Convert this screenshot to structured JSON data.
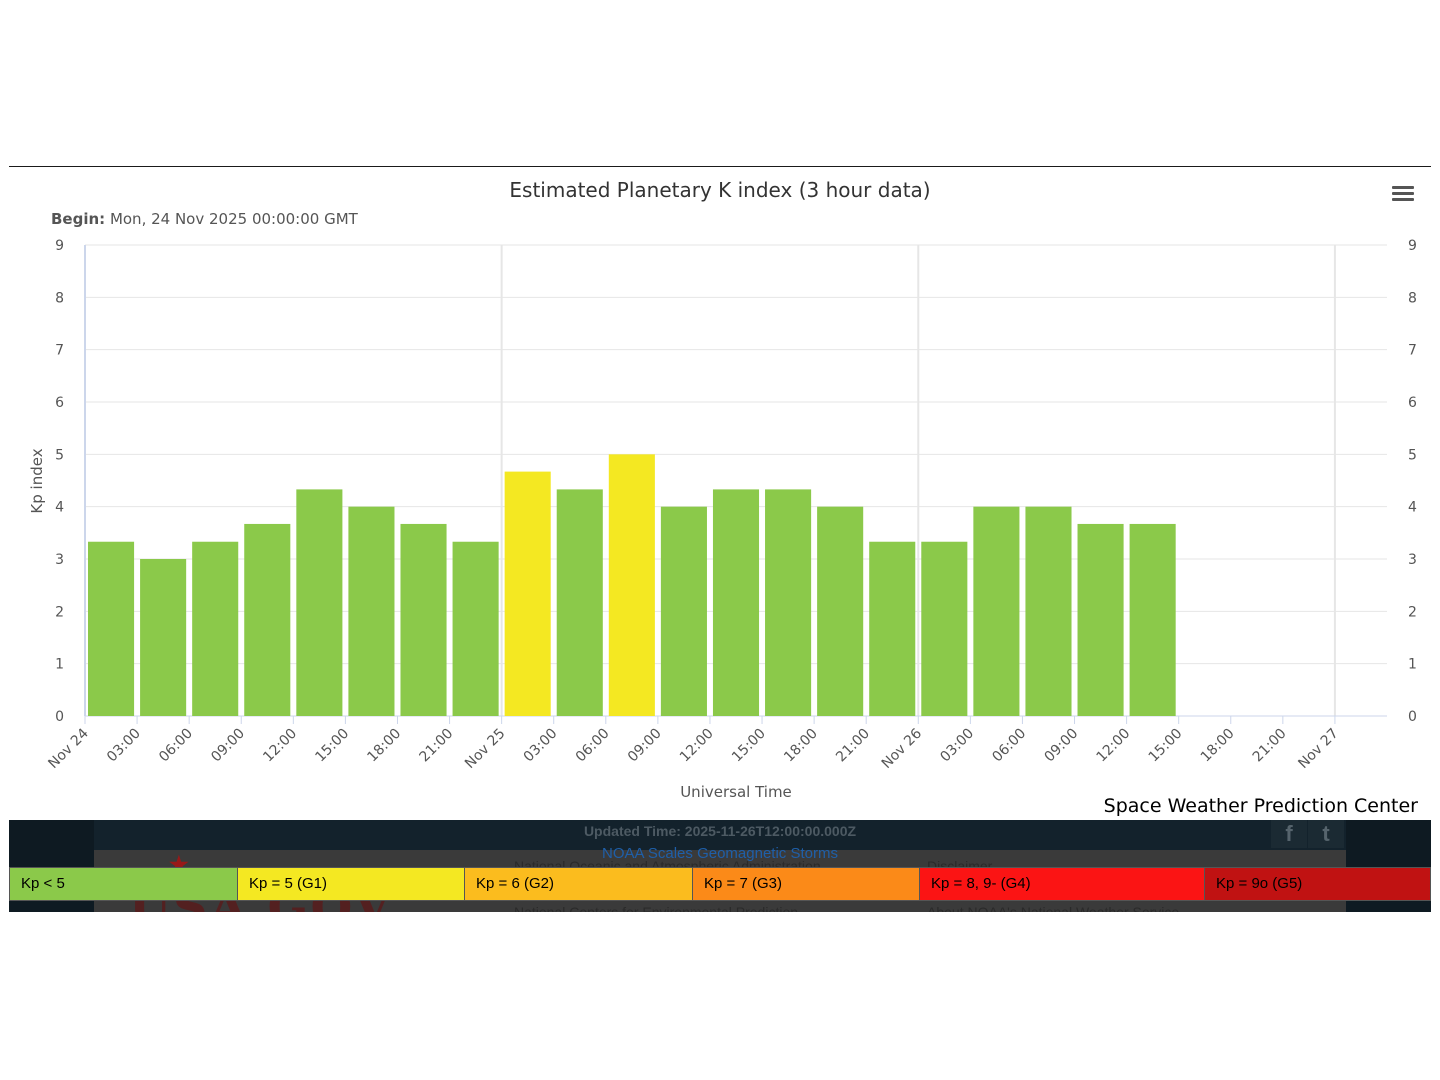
{
  "chart_data": {
    "type": "bar",
    "title": "Estimated Planetary K index (3 hour data)",
    "subtitle_label": "Begin:",
    "subtitle_value": "Mon, 24 Nov 2025 00:00:00 GMT",
    "xlabel": "Universal Time",
    "ylabel": "Kp index",
    "ylim": [
      0,
      9
    ],
    "yticks": [
      "0",
      "1",
      "2",
      "3",
      "4",
      "5",
      "6",
      "7",
      "8",
      "9"
    ],
    "xticks": [
      "Nov 24",
      "03:00",
      "06:00",
      "09:00",
      "12:00",
      "15:00",
      "18:00",
      "21:00",
      "Nov 25",
      "03:00",
      "06:00",
      "09:00",
      "12:00",
      "15:00",
      "18:00",
      "21:00",
      "Nov 26",
      "03:00",
      "06:00",
      "09:00",
      "12:00",
      "15:00",
      "18:00",
      "21:00",
      "Nov 27"
    ],
    "bars": [
      {
        "start": "2025-11-24T00:00",
        "value": 3.33
      },
      {
        "start": "2025-11-24T03:00",
        "value": 3.0
      },
      {
        "start": "2025-11-24T06:00",
        "value": 3.33
      },
      {
        "start": "2025-11-24T09:00",
        "value": 3.67
      },
      {
        "start": "2025-11-24T12:00",
        "value": 4.33
      },
      {
        "start": "2025-11-24T15:00",
        "value": 4.0
      },
      {
        "start": "2025-11-24T18:00",
        "value": 3.67
      },
      {
        "start": "2025-11-24T21:00",
        "value": 3.33
      },
      {
        "start": "2025-11-25T00:00",
        "value": 4.67
      },
      {
        "start": "2025-11-25T03:00",
        "value": 4.33
      },
      {
        "start": "2025-11-25T06:00",
        "value": 5.0
      },
      {
        "start": "2025-11-25T09:00",
        "value": 4.0
      },
      {
        "start": "2025-11-25T12:00",
        "value": 4.33
      },
      {
        "start": "2025-11-25T15:00",
        "value": 4.33
      },
      {
        "start": "2025-11-25T18:00",
        "value": 4.0
      },
      {
        "start": "2025-11-25T21:00",
        "value": 3.33
      },
      {
        "start": "2025-11-26T00:00",
        "value": 3.33
      },
      {
        "start": "2025-11-26T03:00",
        "value": 4.0
      },
      {
        "start": "2025-11-26T06:00",
        "value": 4.0
      },
      {
        "start": "2025-11-26T09:00",
        "value": 3.67
      },
      {
        "start": "2025-11-26T12:00",
        "value": 3.67
      }
    ],
    "grid": true,
    "colors": {
      "kp_lt5": "#8bc94a",
      "g1": "#f4e822",
      "g2": "#fbbc1e",
      "g3": "#fb8a18",
      "g4": "#fb1414",
      "g5": "#c01212",
      "grid": "#e6e6e6",
      "axis": "#ccd6eb"
    }
  },
  "menu": {
    "icon": "hamburger-menu-icon"
  },
  "credit": "Space Weather Prediction Center",
  "legend": [
    {
      "label": "Kp < 5",
      "color": "#8bc94a"
    },
    {
      "label": "Kp = 5 (G1)",
      "color": "#f4e822"
    },
    {
      "label": "Kp = 6 (G2)",
      "color": "#fbbc1e"
    },
    {
      "label": "Kp = 7 (G3)",
      "color": "#fb8a18"
    },
    {
      "label": "Kp = 8, 9- (G4)",
      "color": "#fb1414"
    },
    {
      "label": "Kp = 9o (G5)",
      "color": "#c01212"
    }
  ],
  "footer": {
    "updated": "Updated Time: 2025-11-26T12:00:00.000Z",
    "scales_link": "NOAA Scales Geomagnetic Storms",
    "links": [
      "National Oceanic and Atmospheric Administration",
      "Disclaimer",
      "National Centers for Environmental Prediction",
      "About NOAA's National Weather Service"
    ],
    "logo_text": "USA.GOV",
    "social": [
      "f",
      "t"
    ]
  }
}
